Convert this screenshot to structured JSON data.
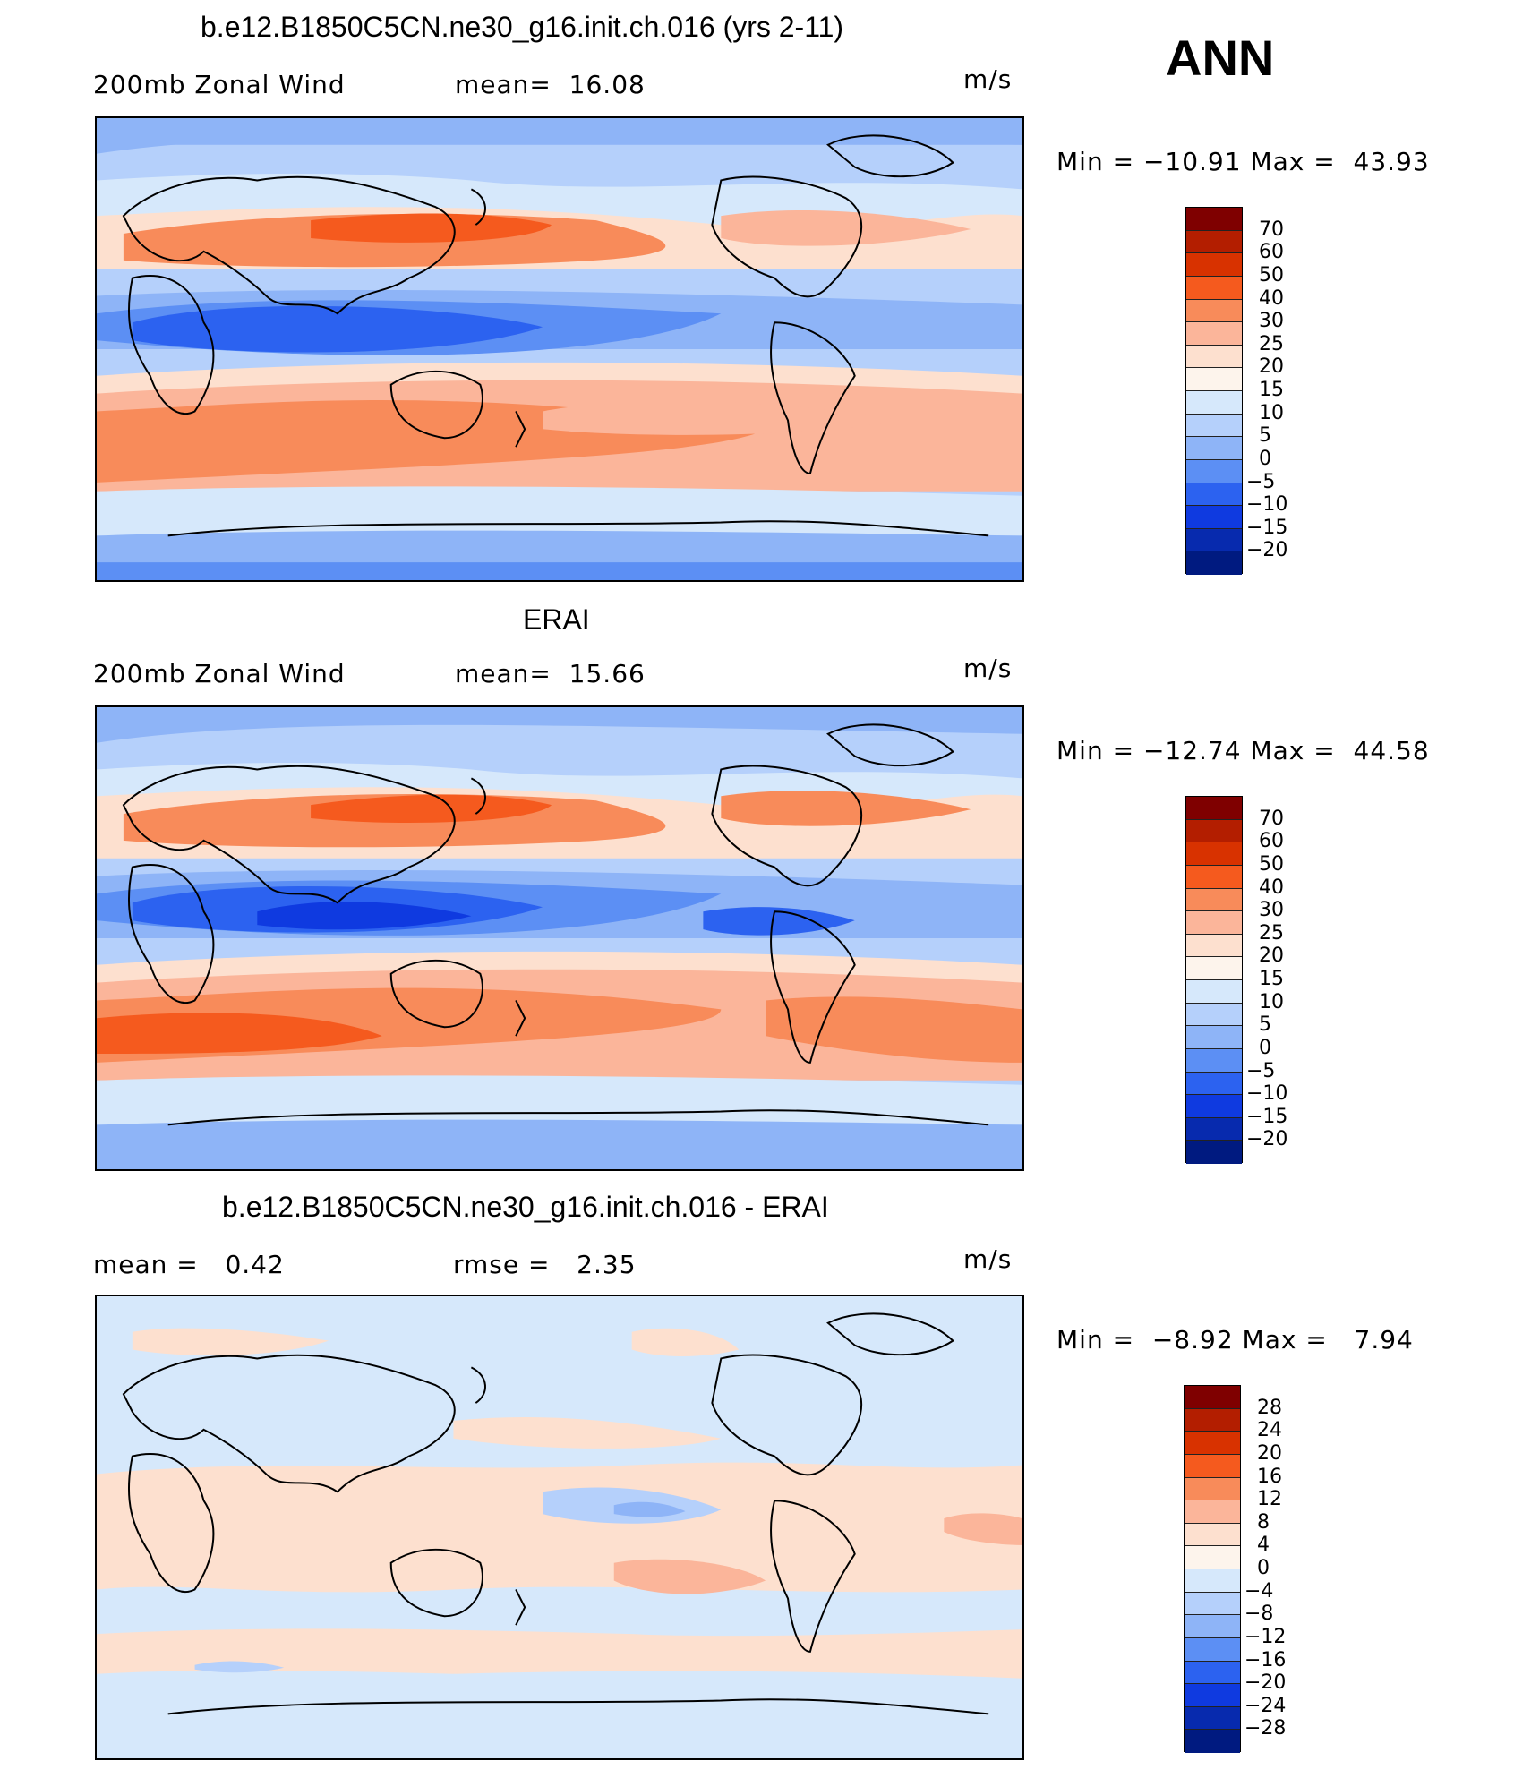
{
  "season": "ANN",
  "panels": [
    {
      "title": "b.e12.B1850C5CN.ne30_g16.init.ch.016 (yrs 2-11)",
      "left_label": "200mb Zonal Wind",
      "stat1": "mean=  16.08",
      "stat2": "",
      "units": "m/s",
      "minmax": "Min = −10.91 Max =  43.93",
      "levels": [
        "70",
        "60",
        "50",
        "40",
        "30",
        "25",
        "20",
        "15",
        "10",
        "5",
        "0",
        "−5",
        "−10",
        "−15",
        "−20"
      ]
    },
    {
      "title": "ERAI",
      "left_label": "200mb Zonal Wind",
      "stat1": "mean=  15.66",
      "stat2": "",
      "units": "m/s",
      "minmax": "Min = −12.74 Max =  44.58",
      "levels": [
        "70",
        "60",
        "50",
        "40",
        "30",
        "25",
        "20",
        "15",
        "10",
        "5",
        "0",
        "−5",
        "−10",
        "−15",
        "−20"
      ]
    },
    {
      "title": "b.e12.B1850C5CN.ne30_g16.init.ch.016 - ERAI",
      "left_label": "mean =   0.42",
      "stat1": "rmse =   2.35",
      "stat2": "",
      "units": "m/s",
      "minmax": "Min =  −8.92 Max =   7.94",
      "levels": [
        "28",
        "24",
        "20",
        "16",
        "12",
        "8",
        "4",
        "0",
        "−4",
        "−8",
        "−12",
        "−16",
        "−20",
        "−24",
        "−28"
      ]
    }
  ],
  "colors": {
    "colorbar": [
      "#7f0000",
      "#b31e00",
      "#d83200",
      "#f55a1e",
      "#f88b5a",
      "#fbb59a",
      "#fde0cf",
      "#fdf4ec",
      "#d6e8fb",
      "#b5d0fb",
      "#8eb4f7",
      "#5c8ff4",
      "#2c62f0",
      "#0f3ae0",
      "#072aae",
      "#001a80"
    ],
    "diff_colorbar": [
      "#7f0000",
      "#b31e00",
      "#d83200",
      "#f55a1e",
      "#f88b5a",
      "#fbb59a",
      "#fde0cf",
      "#fdf4ec",
      "#d6e8fb",
      "#b5d0fb",
      "#8eb4f7",
      "#5c8ff4",
      "#2c62f0",
      "#0f3ae0",
      "#072aae",
      "#001a80"
    ]
  }
}
